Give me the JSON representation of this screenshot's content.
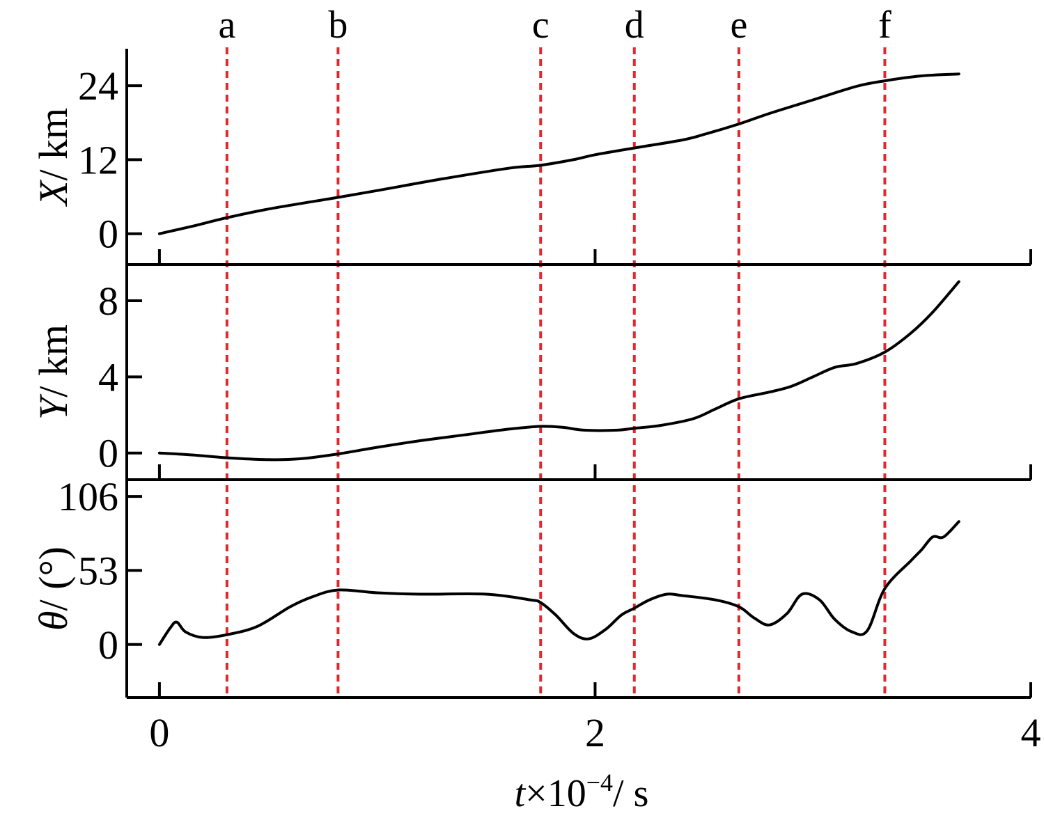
{
  "chart_data": {
    "type": "line",
    "colors": {
      "curve": "#000000",
      "marker_line": "#e0282e"
    },
    "x": {
      "label_prefix": "t",
      "label_mult": "×10",
      "label_exp": "−4",
      "label_unit": "/ s",
      "lim": [
        -0.15,
        4
      ],
      "ticks": [
        0,
        2,
        4
      ],
      "tick_labels": [
        "0",
        "2",
        "4"
      ]
    },
    "markers": [
      {
        "label": "a",
        "t": 0.31
      },
      {
        "label": "b",
        "t": 0.82
      },
      {
        "label": "c",
        "t": 1.75
      },
      {
        "label": "d",
        "t": 2.18
      },
      {
        "label": "e",
        "t": 2.66
      },
      {
        "label": "f",
        "t": 3.33
      }
    ],
    "panels": [
      {
        "id": "X",
        "ylabel_var": "X",
        "ylabel_unit": "/ km",
        "ylim": [
          -5,
          30
        ],
        "yticks": [
          0,
          12,
          24
        ],
        "ytick_labels": [
          "0",
          "12",
          "24"
        ],
        "series": {
          "t": [
            0,
            0.15,
            0.31,
            0.5,
            0.82,
            1.0,
            1.3,
            1.6,
            1.75,
            1.9,
            2.0,
            2.18,
            2.4,
            2.5,
            2.66,
            2.8,
            3.0,
            3.2,
            3.33,
            3.5,
            3.67
          ],
          "values": [
            0,
            1.2,
            2.6,
            4.0,
            5.9,
            7.0,
            8.9,
            10.6,
            11.1,
            12.0,
            12.8,
            13.9,
            15.2,
            16.1,
            17.8,
            19.5,
            21.7,
            23.9,
            24.8,
            25.6,
            25.9
          ]
        }
      },
      {
        "id": "Y",
        "ylabel_var": "Y",
        "ylabel_unit": "/ km",
        "ylim": [
          -1.4,
          9.9
        ],
        "yticks": [
          0,
          4,
          8
        ],
        "ytick_labels": [
          "0",
          "4",
          "8"
        ],
        "series": {
          "t": [
            0,
            0.15,
            0.31,
            0.5,
            0.65,
            0.82,
            1.0,
            1.2,
            1.4,
            1.6,
            1.75,
            1.85,
            1.95,
            2.1,
            2.18,
            2.3,
            2.45,
            2.55,
            2.66,
            2.8,
            2.9,
            3.0,
            3.1,
            3.2,
            3.33,
            3.45,
            3.55,
            3.67
          ],
          "values": [
            0,
            -0.1,
            -0.25,
            -0.35,
            -0.3,
            -0.05,
            0.3,
            0.65,
            0.95,
            1.25,
            1.4,
            1.35,
            1.2,
            1.2,
            1.3,
            1.45,
            1.8,
            2.3,
            2.85,
            3.2,
            3.5,
            4.0,
            4.5,
            4.7,
            5.3,
            6.3,
            7.4,
            9.0
          ]
        }
      },
      {
        "id": "theta",
        "ylabel_var": "θ",
        "ylabel_unit": "/ (°)",
        "ylim": [
          -38,
          118
        ],
        "yticks": [
          0,
          53,
          106
        ],
        "ytick_labels": [
          "0",
          "53",
          "106"
        ],
        "series": {
          "t": [
            0,
            0.05,
            0.08,
            0.12,
            0.2,
            0.31,
            0.45,
            0.6,
            0.7,
            0.82,
            1.0,
            1.2,
            1.5,
            1.7,
            1.75,
            1.82,
            1.9,
            1.97,
            2.05,
            2.12,
            2.18,
            2.25,
            2.33,
            2.4,
            2.55,
            2.66,
            2.73,
            2.8,
            2.88,
            2.95,
            3.03,
            3.1,
            3.18,
            3.25,
            3.33,
            3.45,
            3.5,
            3.55,
            3.6,
            3.67
          ],
          "values": [
            0,
            12,
            16,
            9,
            5,
            7,
            13,
            27,
            34,
            39,
            37,
            36,
            36,
            32,
            30,
            21,
            8,
            4,
            11,
            21,
            26,
            32,
            36,
            35,
            32,
            27,
            19,
            14,
            22,
            36,
            32,
            18,
            9,
            10,
            40,
            60,
            68,
            77,
            77,
            88
          ]
        }
      }
    ]
  }
}
